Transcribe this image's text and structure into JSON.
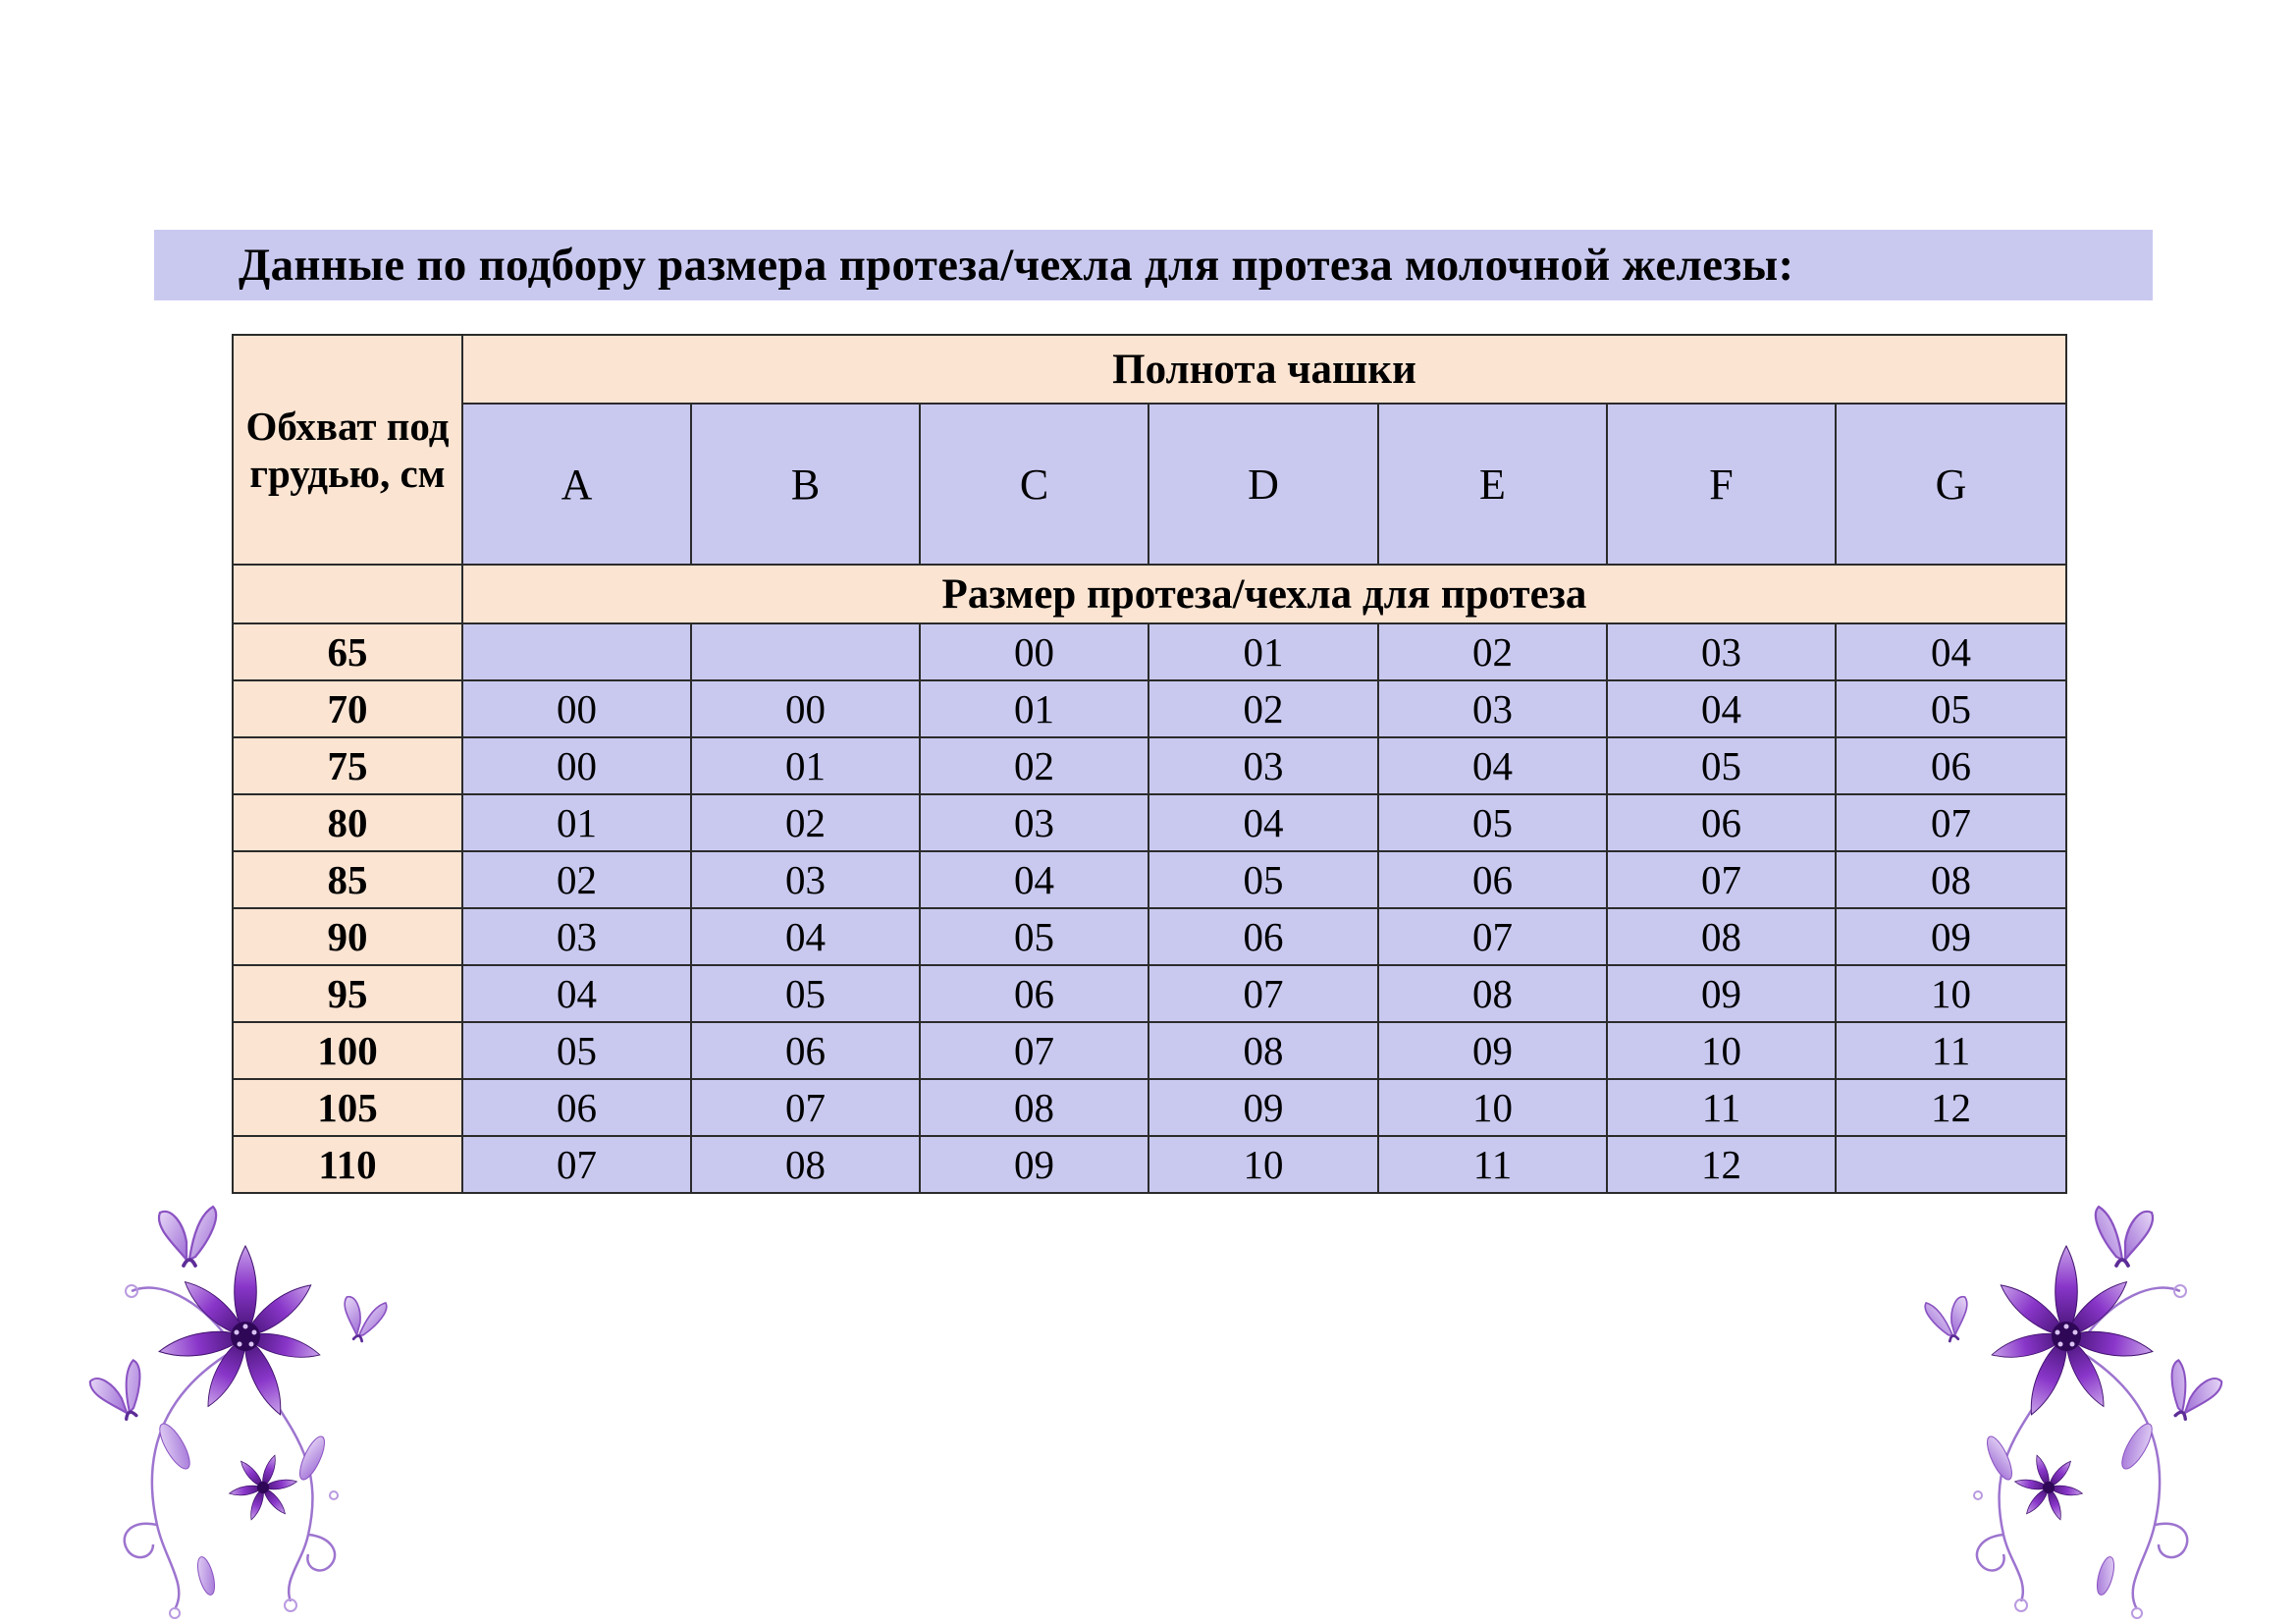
{
  "page": {
    "title": "Данные по подбору размера протеза/чехла для протеза молочной железы:"
  },
  "table": {
    "corner_header": "Обхват под грудью, см",
    "top_header": "Полнота чашки",
    "cup_letters": [
      "A",
      "B",
      "C",
      "D",
      "E",
      "F",
      "G"
    ],
    "sub_header": "Размер протеза/чехла для протеза",
    "rows": [
      {
        "underbust": "65",
        "sizes": [
          "",
          "",
          "00",
          "01",
          "02",
          "03",
          "04"
        ]
      },
      {
        "underbust": "70",
        "sizes": [
          "00",
          "00",
          "01",
          "02",
          "03",
          "04",
          "05"
        ]
      },
      {
        "underbust": "75",
        "sizes": [
          "00",
          "01",
          "02",
          "03",
          "04",
          "05",
          "06"
        ]
      },
      {
        "underbust": "80",
        "sizes": [
          "01",
          "02",
          "03",
          "04",
          "05",
          "06",
          "07"
        ]
      },
      {
        "underbust": "85",
        "sizes": [
          "02",
          "03",
          "04",
          "05",
          "06",
          "07",
          "08"
        ]
      },
      {
        "underbust": "90",
        "sizes": [
          "03",
          "04",
          "05",
          "06",
          "07",
          "08",
          "09"
        ]
      },
      {
        "underbust": "95",
        "sizes": [
          "04",
          "05",
          "06",
          "07",
          "08",
          "09",
          "10"
        ]
      },
      {
        "underbust": "100",
        "sizes": [
          "05",
          "06",
          "07",
          "08",
          "09",
          "10",
          "11"
        ]
      },
      {
        "underbust": "105",
        "sizes": [
          "06",
          "07",
          "08",
          "09",
          "10",
          "11",
          "12"
        ]
      },
      {
        "underbust": "110",
        "sizes": [
          "07",
          "08",
          "09",
          "10",
          "11",
          "12",
          ""
        ]
      }
    ]
  },
  "colors": {
    "title_bg": "#c9c9f0",
    "peach_bg": "#fce4d2",
    "lavender_bg": "#c9c9f0",
    "border_color": "#2b2b2b",
    "ornament_purple": "#7b2fbe"
  },
  "decorations": {
    "left": "flower-with-butterflies-ornament",
    "right": "flower-with-butterflies-ornament"
  }
}
